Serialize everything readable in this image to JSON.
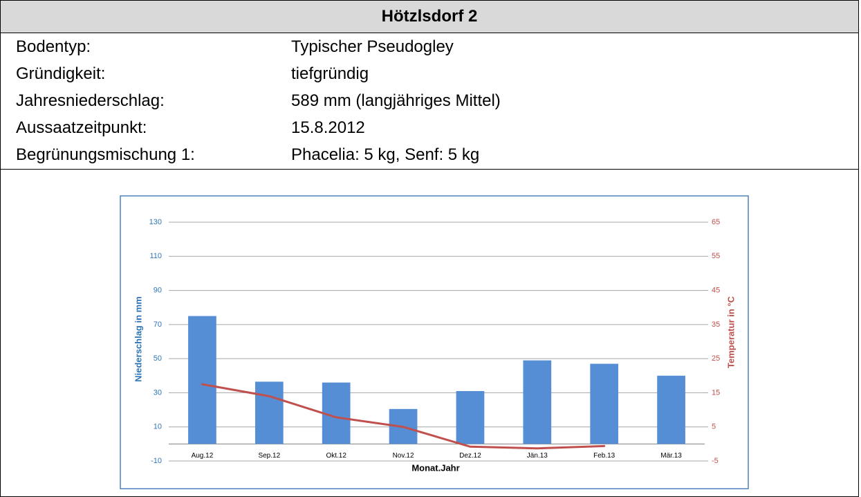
{
  "header": {
    "title": "Hötzlsdorf 2"
  },
  "table": {
    "rows": [
      [
        "Bodentyp:",
        "Typischer Pseudogley"
      ],
      [
        "Gründigkeit:",
        "tiefgründig"
      ],
      [
        "Jahresniederschlag:",
        "589 mm (langjähriges Mittel)"
      ],
      [
        "Aussaatzeitpunkt:",
        "15.8.2012"
      ],
      [
        "Begrünungsmischung 1:",
        "Phacelia: 5 kg, Senf: 5 kg"
      ]
    ]
  },
  "chart_data": {
    "type": "bar",
    "xlabel": "Monat.Jahr",
    "ylabel": "Niederschlag in mm",
    "y2label": "Temperatur in °C",
    "categories": [
      "Aug.12",
      "Sep.12",
      "Okt.12",
      "Nov.12",
      "Dez.12",
      "Jän.13",
      "Feb.13",
      "Mär.13"
    ],
    "series": [
      {
        "color": "#558ed5",
        "values": [
          75,
          36.5,
          36,
          20.5,
          31,
          49,
          47,
          40
        ]
      },
      {
        "type": "line",
        "axis": "y2",
        "color": "#c0504d",
        "values": [
          17.5,
          14,
          7.8,
          5,
          -0.8,
          -1.3,
          -0.6,
          null
        ]
      }
    ],
    "ylim": [
      -10,
      130
    ],
    "yticks": [
      -10,
      10,
      30,
      50,
      70,
      90,
      110,
      130
    ],
    "y2lim": [
      -5,
      65
    ],
    "y2ticks": [
      -5,
      5,
      15,
      25,
      35,
      45,
      55,
      65
    ],
    "grid": true
  }
}
